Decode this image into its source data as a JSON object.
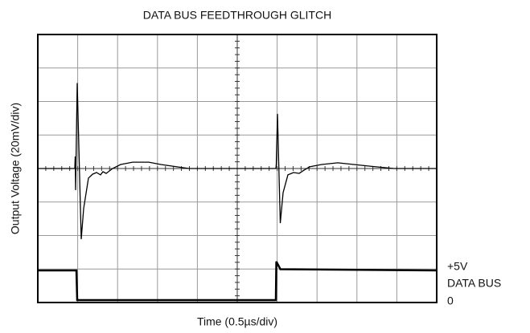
{
  "chart_data": {
    "type": "line",
    "title": "DATA BUS FEEDTHROUGH GLITCH",
    "x_label": "Time (0.5µs/div)",
    "y_label": "Output Voltage (20mV/div)",
    "y2_label": "DATA BUS",
    "xlim": [
      0,
      5
    ],
    "xticks": [
      0,
      0.5,
      1,
      1.5,
      2,
      2.5,
      3,
      3.5,
      4,
      4.5,
      5
    ],
    "ylim": [
      -80,
      80
    ],
    "yticks": [
      -80,
      -60,
      -40,
      -20,
      0,
      20,
      40,
      60,
      80
    ],
    "y2lim": [
      -0.4,
      44.7
    ],
    "y2ticks": [
      {
        "value": 5,
        "label": "+5V"
      },
      {
        "value": 0,
        "label": "0"
      }
    ],
    "grid": true,
    "series": [
      {
        "name": "Output Voltage",
        "color": "#000000",
        "x": [
          0,
          0.464,
          0.469,
          0.474,
          0.494,
          0.544,
          0.575,
          0.635,
          0.686,
          0.736,
          0.786,
          0.817,
          0.857,
          0.938,
          1.038,
          1.19,
          1.391,
          1.542,
          1.744,
          1.895,
          2.984,
          2.989,
          3.004,
          3.039,
          3.075,
          3.135,
          3.206,
          3.276,
          3.337,
          3.407,
          3.558,
          3.76,
          3.962,
          4.163,
          4.466,
          5.0
        ],
        "values": [
          0,
          0,
          7.2,
          -12.9,
          51.0,
          -42.2,
          -23.9,
          -5.7,
          -3.4,
          -2.4,
          -3.8,
          -1.9,
          -2.9,
          0,
          2.4,
          3.8,
          3.8,
          2.4,
          1.0,
          0,
          0,
          2.4,
          32.6,
          -32.6,
          -14.4,
          -3.8,
          -2.4,
          -2.9,
          -1.0,
          1.0,
          2.4,
          3.4,
          2.4,
          1.4,
          0,
          0
        ]
      },
      {
        "name": "Data Bus",
        "color": "#000000",
        "axis": "y2",
        "x": [
          0,
          0.484,
          0.494,
          2.984,
          2.99,
          3.04,
          5.0
        ],
        "values": [
          5,
          5,
          0,
          0,
          6.5,
          5.2,
          5
        ]
      }
    ]
  }
}
